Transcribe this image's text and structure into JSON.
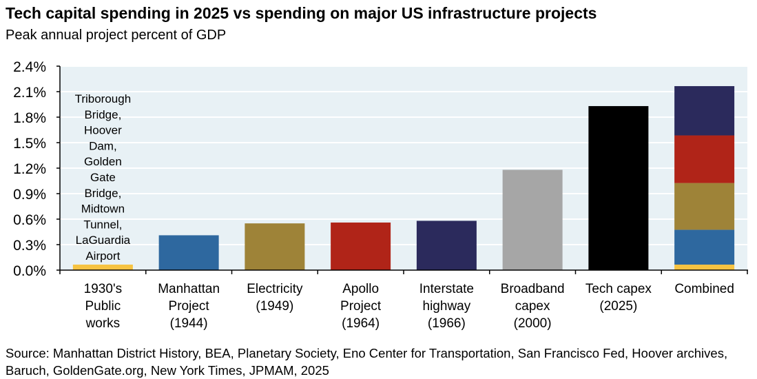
{
  "chart_data": {
    "type": "bar",
    "title": "Tech capital spending in 2025 vs spending on major US infrastructure projects",
    "subtitle": "Peak annual project percent of GDP",
    "categories": [
      [
        "1930's",
        "Public",
        "works"
      ],
      [
        "Manhattan",
        "Project",
        "(1944)"
      ],
      [
        "Electricity",
        "(1949)"
      ],
      [
        "Apollo",
        "Project",
        "(1964)"
      ],
      [
        "Interstate",
        "highway",
        "(1966)"
      ],
      [
        "Broadband",
        "capex",
        "(2000)"
      ],
      [
        "Tech capex",
        "(2025)"
      ],
      [
        "Combined"
      ]
    ],
    "values": [
      0.065,
      0.41,
      0.55,
      0.56,
      0.58,
      1.18,
      1.93,
      null
    ],
    "colors": [
      "#f6c342",
      "#2e689f",
      "#9e8338",
      "#b02418",
      "#2b2a5c",
      "#a6a6a6",
      "#000000"
    ],
    "stacked_combined": {
      "segments": [
        {
          "category_index": 0,
          "value": 0.065
        },
        {
          "category_index": 1,
          "value": 0.41
        },
        {
          "category_index": 2,
          "value": 0.55
        },
        {
          "category_index": 3,
          "value": 0.56
        },
        {
          "category_index": 4,
          "value": 0.58
        }
      ],
      "total": 2.165
    },
    "annotation": [
      "Triborough",
      "Bridge,",
      "Hoover",
      "Dam,",
      "Golden",
      "Gate",
      "Bridge,",
      "Midtown",
      "Tunnel,",
      "LaGuardia",
      "Airport"
    ],
    "ylim": [
      0,
      2.4
    ],
    "yticks": [
      "0.0%",
      "0.3%",
      "0.6%",
      "0.9%",
      "1.2%",
      "1.5%",
      "1.8%",
      "2.1%",
      "2.4%"
    ],
    "ytick_values": [
      0,
      0.3,
      0.6,
      0.9,
      1.2,
      1.5,
      1.8,
      2.1,
      2.4
    ],
    "grid": true,
    "plot_background": "#e8f1f5",
    "xlabel": "",
    "ylabel": ""
  },
  "source": "Source: Manhattan District History, BEA, Planetary Society, Eno Center for Transportation, San Francisco Fed, Hoover archives, Baruch, GoldenGate.org, New York Times, JPMAM, 2025"
}
